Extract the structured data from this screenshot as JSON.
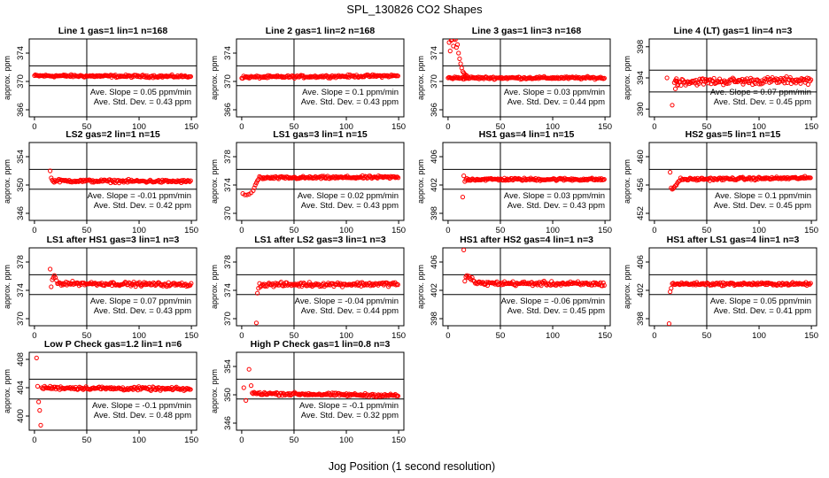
{
  "figure": {
    "title": "SPL_130826  CO2 Shapes",
    "xlabel": "Jog Position (1 second resolution)",
    "point_color": "#ff0000"
  },
  "chart_data": [
    {
      "type": "scatter",
      "title": "Line 1 gas=1 lin=1 n=168",
      "ylabel": "approx. ppm",
      "xlim": [
        -5,
        155
      ],
      "ylim": [
        365,
        376
      ],
      "xticks": [
        0,
        50,
        100,
        150
      ],
      "yticks": [
        366,
        370,
        374
      ],
      "hlines": [
        369.4,
        372.2
      ],
      "slope_text": "Ave. Slope = 0.05 ppm/min",
      "std_text": "Ave. Std. Dev. = 0.43 ppm",
      "profile": {
        "start": 0,
        "baseline": 370.8,
        "noise": 0.12,
        "end_value": 370.7
      },
      "extra_points": []
    },
    {
      "type": "scatter",
      "title": "Line 2 gas=1 lin=2 n=168",
      "ylabel": "approx. ppm",
      "xlim": [
        -5,
        155
      ],
      "ylim": [
        365,
        376
      ],
      "xticks": [
        0,
        50,
        100,
        150
      ],
      "yticks": [
        366,
        370,
        374
      ],
      "hlines": [
        369.4,
        372.2
      ],
      "slope_text": "Ave. Slope = 0.1 ppm/min",
      "std_text": "Ave. Std. Dev. = 0.43 ppm",
      "profile": {
        "start": 0,
        "baseline": 370.6,
        "noise": 0.12,
        "end_value": 370.8
      },
      "extra_points": []
    },
    {
      "type": "scatter",
      "title": "Line 3 gas=1 lin=3 n=168",
      "ylabel": "approx. ppm",
      "xlim": [
        -5,
        155
      ],
      "ylim": [
        365,
        376
      ],
      "xticks": [
        0,
        50,
        100,
        150
      ],
      "yticks": [
        366,
        370,
        374
      ],
      "hlines": [
        369.4,
        372.2
      ],
      "slope_text": "Ave. Slope = 0.03 ppm/min",
      "std_text": "Ave. Std. Dev. = 0.44 ppm",
      "profile": {
        "start": 0,
        "baseline": 370.5,
        "noise": 0.12,
        "end_value": 370.5
      },
      "extra_points": [
        [
          1,
          375.5
        ],
        [
          2,
          374.3
        ],
        [
          3,
          375.8
        ],
        [
          4,
          375.9
        ],
        [
          5,
          375.0
        ],
        [
          6,
          376.0
        ],
        [
          7,
          375.9
        ],
        [
          8,
          374.8
        ],
        [
          9,
          375.2
        ],
        [
          10,
          374.0
        ],
        [
          11,
          373.2
        ],
        [
          12,
          372.5
        ],
        [
          13,
          371.9
        ],
        [
          14,
          371.4
        ],
        [
          15,
          371.2
        ],
        [
          16,
          371.0
        ],
        [
          17,
          370.9
        ],
        [
          18,
          370.8
        ]
      ]
    },
    {
      "type": "scatter",
      "title": "Line 4 (LT) gas=1 lin=4 n=3",
      "ylabel": "approx. ppm",
      "xlim": [
        -5,
        155
      ],
      "ylim": [
        389,
        399
      ],
      "xticks": [
        0,
        50,
        100,
        150
      ],
      "yticks": [
        390,
        394,
        398
      ],
      "hlines": [
        392.2,
        395.0
      ],
      "slope_text": "Ave. Slope = 0.07 ppm/min",
      "std_text": "Ave. Std. Dev. = 0.45 ppm",
      "profile": {
        "start": 20,
        "baseline": 393.5,
        "noise": 0.3,
        "end_value": 393.7
      },
      "extra_points": [
        [
          12,
          394.0
        ],
        [
          17,
          390.5
        ],
        [
          19,
          393.4
        ],
        [
          20,
          392.6
        ],
        [
          21,
          393.9
        ],
        [
          22,
          393.0
        ]
      ]
    },
    {
      "type": "scatter",
      "title": "LS2 gas=2 lin=1 n=15",
      "ylabel": "approx. ppm",
      "xlim": [
        -5,
        155
      ],
      "ylim": [
        345,
        356
      ],
      "xticks": [
        0,
        50,
        100,
        150
      ],
      "yticks": [
        346,
        350,
        354
      ],
      "hlines": [
        349.4,
        352.2
      ],
      "slope_text": "Ave. Slope = -0.01 ppm/min",
      "std_text": "Ave. Std. Dev. = 0.42 ppm",
      "profile": {
        "start": 17,
        "baseline": 350.6,
        "noise": 0.14,
        "end_value": 350.5
      },
      "extra_points": [
        [
          15,
          352.0
        ],
        [
          16,
          351.0
        ]
      ]
    },
    {
      "type": "scatter",
      "title": "LS1 gas=3 lin=1 n=15",
      "ylabel": "approx. ppm",
      "xlim": [
        -5,
        155
      ],
      "ylim": [
        369,
        380
      ],
      "xticks": [
        0,
        50,
        100,
        150
      ],
      "yticks": [
        370,
        374,
        378
      ],
      "hlines": [
        373.4,
        376.2
      ],
      "slope_text": "Ave. Slope = 0.02 ppm/min",
      "std_text": "Ave. Std. Dev. = 0.43 ppm",
      "profile": {
        "start": 20,
        "baseline": 375.0,
        "noise": 0.13,
        "end_value": 375.1
      },
      "extra_points": [
        [
          1,
          372.8
        ],
        [
          3,
          372.6
        ],
        [
          5,
          372.6
        ],
        [
          7,
          372.7
        ],
        [
          9,
          372.9
        ],
        [
          11,
          373.2
        ],
        [
          12,
          373.6
        ],
        [
          13,
          374.0
        ],
        [
          14,
          374.3
        ],
        [
          15,
          374.6
        ],
        [
          16,
          374.8
        ],
        [
          17,
          375.2
        ],
        [
          18,
          375.1
        ],
        [
          19,
          375.0
        ]
      ]
    },
    {
      "type": "scatter",
      "title": "HS1 gas=4 lin=1 n=15",
      "ylabel": "approx. ppm",
      "xlim": [
        -5,
        155
      ],
      "ylim": [
        397,
        408
      ],
      "xticks": [
        0,
        50,
        100,
        150
      ],
      "yticks": [
        398,
        402,
        406
      ],
      "hlines": [
        401.4,
        404.2
      ],
      "slope_text": "Ave. Slope = 0.03 ppm/min",
      "std_text": "Ave. Std. Dev. = 0.43 ppm",
      "profile": {
        "start": 17,
        "baseline": 402.8,
        "noise": 0.13,
        "end_value": 402.8
      },
      "extra_points": [
        [
          14,
          400.3
        ],
        [
          15,
          403.3
        ],
        [
          16,
          402.5
        ]
      ]
    },
    {
      "type": "scatter",
      "title": "HS2 gas=5 lin=1 n=15",
      "ylabel": "approx. ppm",
      "xlim": [
        -5,
        155
      ],
      "ylim": [
        451,
        462
      ],
      "xticks": [
        0,
        50,
        100,
        150
      ],
      "yticks": [
        452,
        456,
        460
      ],
      "hlines": [
        455.4,
        458.2
      ],
      "slope_text": "Ave. Slope = 0.1 ppm/min",
      "std_text": "Ave. Std. Dev. = 0.45 ppm",
      "profile": {
        "start": 25,
        "baseline": 456.8,
        "noise": 0.13,
        "end_value": 457.0
      },
      "extra_points": [
        [
          15,
          457.8
        ],
        [
          16,
          455.6
        ],
        [
          17,
          455.4
        ],
        [
          18,
          455.5
        ],
        [
          19,
          455.7
        ],
        [
          20,
          455.9
        ],
        [
          21,
          456.0
        ],
        [
          22,
          456.3
        ],
        [
          23,
          456.5
        ],
        [
          24,
          456.6
        ]
      ]
    },
    {
      "type": "scatter",
      "title": "LS1 after HS1 gas=3 lin=1 n=3",
      "ylabel": "approx. ppm",
      "xlim": [
        -5,
        155
      ],
      "ylim": [
        369,
        380
      ],
      "xticks": [
        0,
        50,
        100,
        150
      ],
      "yticks": [
        370,
        374,
        378
      ],
      "hlines": [
        373.4,
        376.2
      ],
      "slope_text": "Ave. Slope = 0.07 ppm/min",
      "std_text": "Ave. Std. Dev. = 0.43 ppm",
      "profile": {
        "start": 22,
        "baseline": 375.0,
        "noise": 0.18,
        "end_value": 374.8
      },
      "extra_points": [
        [
          15,
          377.0
        ],
        [
          16,
          374.5
        ],
        [
          17,
          375.5
        ],
        [
          18,
          375.8
        ],
        [
          19,
          376.1
        ],
        [
          20,
          375.8
        ],
        [
          21,
          375.4
        ]
      ]
    },
    {
      "type": "scatter",
      "title": "LS1 after LS2 gas=3 lin=1 n=3",
      "ylabel": "approx. ppm",
      "xlim": [
        -5,
        155
      ],
      "ylim": [
        369,
        380
      ],
      "xticks": [
        0,
        50,
        100,
        150
      ],
      "yticks": [
        370,
        374,
        378
      ],
      "hlines": [
        373.4,
        376.2
      ],
      "slope_text": "Ave. Slope = -0.04 ppm/min",
      "std_text": "Ave. Std. Dev. = 0.44 ppm",
      "profile": {
        "start": 17,
        "baseline": 374.8,
        "noise": 0.2,
        "end_value": 374.9
      },
      "extra_points": [
        [
          14,
          369.4
        ],
        [
          15,
          373.6
        ],
        [
          16,
          374.3
        ]
      ]
    },
    {
      "type": "scatter",
      "title": "HS1 after HS2 gas=4 lin=1 n=3",
      "ylabel": "approx. ppm",
      "xlim": [
        -5,
        155
      ],
      "ylim": [
        397,
        408
      ],
      "xticks": [
        0,
        50,
        100,
        150
      ],
      "yticks": [
        398,
        402,
        406
      ],
      "hlines": [
        401.4,
        404.2
      ],
      "slope_text": "Ave. Slope = -0.06 ppm/min",
      "std_text": "Ave. Std. Dev. = 0.45 ppm",
      "profile": {
        "start": 26,
        "baseline": 403.0,
        "noise": 0.2,
        "end_value": 402.9
      },
      "extra_points": [
        [
          15,
          407.7
        ],
        [
          16,
          403.3
        ],
        [
          17,
          403.9
        ],
        [
          18,
          404.1
        ],
        [
          19,
          403.8
        ],
        [
          20,
          404.0
        ],
        [
          21,
          403.7
        ],
        [
          22,
          403.5
        ],
        [
          23,
          403.8
        ],
        [
          24,
          403.4
        ],
        [
          25,
          403.3
        ]
      ]
    },
    {
      "type": "scatter",
      "title": "HS1 after LS1 gas=4 lin=1 n=3",
      "ylabel": "approx. ppm",
      "xlim": [
        -5,
        155
      ],
      "ylim": [
        397,
        408
      ],
      "xticks": [
        0,
        50,
        100,
        150
      ],
      "yticks": [
        398,
        402,
        406
      ],
      "hlines": [
        401.4,
        404.2
      ],
      "slope_text": "Ave. Slope = 0.05 ppm/min",
      "std_text": "Ave. Std. Dev. = 0.41 ppm",
      "profile": {
        "start": 17,
        "baseline": 402.9,
        "noise": 0.14,
        "end_value": 402.9
      },
      "extra_points": [
        [
          14,
          397.3
        ],
        [
          15,
          401.8
        ],
        [
          16,
          402.3
        ]
      ]
    },
    {
      "type": "scatter",
      "title": "Low P Check gas=1.2 lin=1 n=6",
      "ylabel": "approx. ppm",
      "xlim": [
        -5,
        155
      ],
      "ylim": [
        398,
        409
      ],
      "xticks": [
        0,
        50,
        100,
        150
      ],
      "yticks": [
        400,
        404,
        408
      ],
      "hlines": [
        402.4,
        405.2
      ],
      "slope_text": "Ave. Slope = -0.1 ppm/min",
      "std_text": "Ave. Std. Dev. = 0.48 ppm",
      "profile": {
        "start": 7,
        "baseline": 404.0,
        "noise": 0.16,
        "end_value": 403.8
      },
      "extra_points": [
        [
          2,
          408.2
        ],
        [
          3,
          404.2
        ],
        [
          4,
          402.0
        ],
        [
          5,
          400.8
        ],
        [
          6,
          398.7
        ]
      ]
    },
    {
      "type": "scatter",
      "title": "High P Check gas=1 lin=0.8 n=3",
      "ylabel": "approx. ppm",
      "xlim": [
        -5,
        155
      ],
      "ylim": [
        345,
        356
      ],
      "xticks": [
        0,
        50,
        100,
        150
      ],
      "yticks": [
        346,
        350,
        354
      ],
      "hlines": [
        349.4,
        352.2
      ],
      "slope_text": "Ave. Slope = -0.1 ppm/min",
      "std_text": "Ave. Std. Dev. = 0.32 ppm",
      "profile": {
        "start": 10,
        "baseline": 350.2,
        "noise": 0.14,
        "end_value": 349.9
      },
      "extra_points": [
        [
          2,
          351.0
        ],
        [
          4,
          349.2
        ],
        [
          7,
          353.6
        ],
        [
          9,
          351.3
        ]
      ]
    }
  ]
}
